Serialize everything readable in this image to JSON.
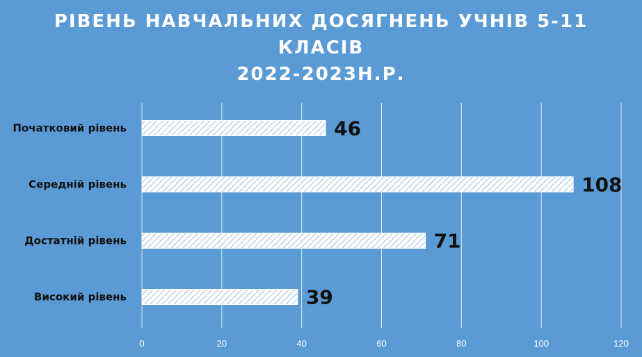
{
  "chart_data": {
    "type": "bar",
    "orientation": "horizontal",
    "title_lines": [
      "РІВЕНЬ НАВЧАЛЬНИХ ДОСЯГНЕНЬ УЧНІВ 5-11",
      "КЛАСІВ",
      "2022-2023Н.Р."
    ],
    "categories": [
      "Початковий рівень",
      "Середній рівень",
      "Достатній рівень",
      "Високий рівень"
    ],
    "values": [
      46,
      108,
      71,
      39
    ],
    "xlim": [
      0,
      120
    ],
    "x_ticks": [
      0,
      20,
      40,
      60,
      80,
      100,
      120
    ],
    "grid": true,
    "bar_fill": "diagonal-hatch white",
    "colors": {
      "background": "#5b9bd5",
      "bar": "#ffffff",
      "grid": "#d6e6f5",
      "text": "#111111"
    }
  }
}
